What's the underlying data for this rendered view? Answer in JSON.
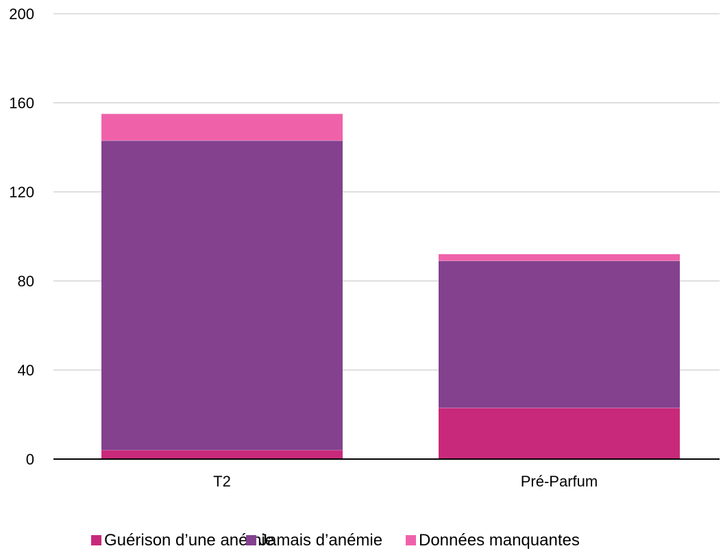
{
  "chart_data": {
    "type": "bar",
    "stacked": true,
    "categories": [
      "T2",
      "Pré-Parfum"
    ],
    "series": [
      {
        "name": "Guérison d’une anémie",
        "values": [
          4,
          23
        ],
        "color": "#c8297a"
      },
      {
        "name": "Jamais d’anémie",
        "values": [
          139,
          66
        ],
        "color": "#83418e"
      },
      {
        "name": "Données manquantes",
        "values": [
          12,
          3
        ],
        "color": "#ef62aa"
      }
    ],
    "yticks": [
      "0",
      "40",
      "80",
      "120",
      "160",
      "200"
    ],
    "ylim": [
      0,
      200
    ],
    "grid": true,
    "legend_position": "bottom"
  }
}
